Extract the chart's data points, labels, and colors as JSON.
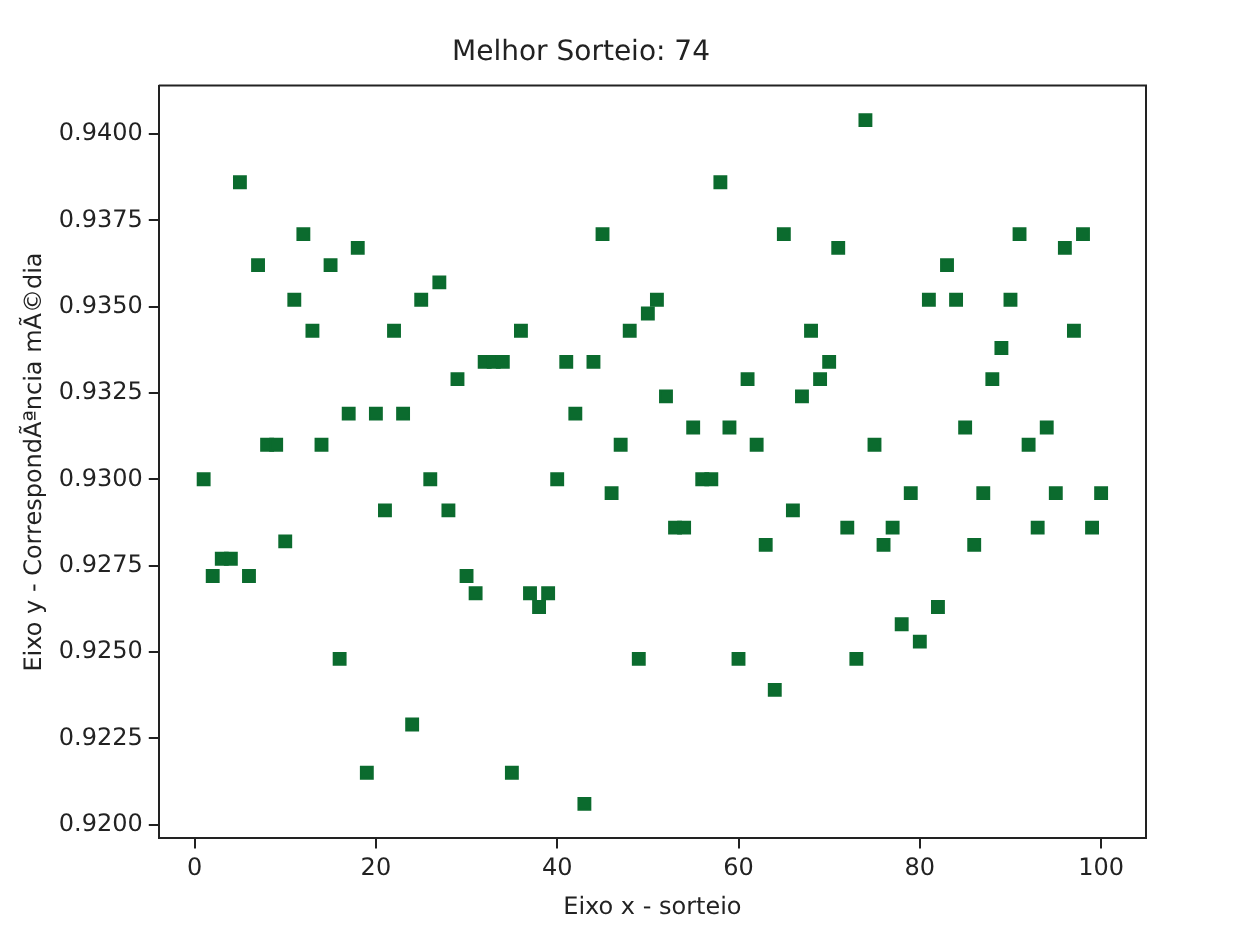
{
  "chart_data": {
    "type": "scatter",
    "title": "Melhor Sorteio: 74",
    "xlabel": "Eixo x - sorteio",
    "ylabel": "Eixo y - CorrespondÃªncia mÃ©dia",
    "x": [
      1,
      2,
      3,
      4,
      5,
      6,
      7,
      8,
      9,
      10,
      11,
      12,
      13,
      14,
      15,
      16,
      17,
      18,
      19,
      20,
      21,
      22,
      23,
      24,
      25,
      26,
      27,
      28,
      29,
      30,
      31,
      32,
      33,
      34,
      35,
      36,
      37,
      38,
      39,
      40,
      41,
      42,
      43,
      44,
      45,
      46,
      47,
      48,
      49,
      50,
      51,
      52,
      53,
      54,
      55,
      56,
      57,
      58,
      59,
      60,
      61,
      62,
      63,
      64,
      65,
      66,
      67,
      68,
      69,
      70,
      71,
      72,
      73,
      74,
      75,
      76,
      77,
      78,
      79,
      80,
      81,
      82,
      83,
      84,
      85,
      86,
      87,
      88,
      89,
      90,
      91,
      92,
      93,
      94,
      95,
      96,
      97,
      98,
      99,
      100
    ],
    "series": [
      {
        "color": "#0b6b2e",
        "values": [
          0.93,
          0.9272,
          0.9277,
          0.9277,
          0.9386,
          0.9272,
          0.9362,
          0.931,
          0.931,
          0.9282,
          0.9352,
          0.9371,
          0.9343,
          0.931,
          0.9362,
          0.9248,
          0.9319,
          0.9367,
          0.9215,
          0.9319,
          0.9291,
          0.9343,
          0.9319,
          0.9229,
          0.9352,
          0.93,
          0.9357,
          0.9291,
          0.9329,
          0.9272,
          0.9267,
          0.9334,
          0.9334,
          0.9334,
          0.9215,
          0.9343,
          0.9267,
          0.9263,
          0.9267,
          0.93,
          0.9334,
          0.9319,
          0.9206,
          0.9334,
          0.9371,
          0.9296,
          0.931,
          0.9343,
          0.9248,
          0.9348,
          0.9352,
          0.9324,
          0.9286,
          0.9286,
          0.9315,
          0.93,
          0.93,
          0.9386,
          0.9315,
          0.9248,
          0.9329,
          0.931,
          0.9281,
          0.9239,
          0.9371,
          0.9291,
          0.9324,
          0.9343,
          0.9329,
          0.9334,
          0.9367,
          0.9286,
          0.9248,
          0.9404,
          0.931,
          0.9281,
          0.9286,
          0.9258,
          0.9296,
          0.9253,
          0.9352,
          0.9263,
          0.9362,
          0.9352,
          0.9315,
          0.9281,
          0.9296,
          0.9329,
          0.9338,
          0.9352,
          0.9371,
          0.931,
          0.9286,
          0.9315,
          0.9296,
          0.9367,
          0.9343,
          0.9371,
          0.9286,
          0.9296
        ]
      }
    ],
    "xlim": [
      -3.95,
      104.95
    ],
    "xticks": [
      0,
      20,
      40,
      60,
      80,
      100
    ],
    "ylim": [
      0.9196,
      0.9414
    ],
    "yticks": [
      {
        "value": 0.92,
        "label": "0.9200"
      },
      {
        "value": 0.9225,
        "label": "0.9225"
      },
      {
        "value": 0.925,
        "label": "0.9250"
      },
      {
        "value": 0.9275,
        "label": "0.9275"
      },
      {
        "value": 0.93,
        "label": "0.9300"
      },
      {
        "value": 0.9325,
        "label": "0.9325"
      },
      {
        "value": 0.935,
        "label": "0.9350"
      },
      {
        "value": 0.9375,
        "label": "0.9375"
      },
      {
        "value": 0.94,
        "label": "0.9400"
      }
    ],
    "marker": "square",
    "grid": false,
    "legend": false
  }
}
